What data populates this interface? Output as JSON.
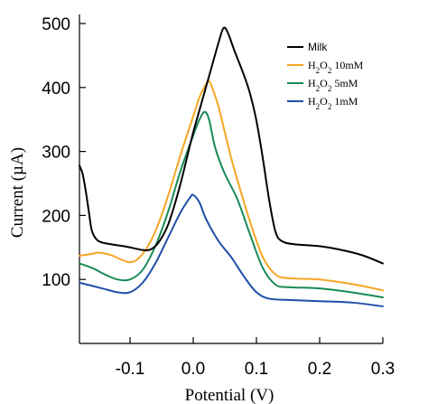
{
  "chart_data": {
    "type": "line",
    "xlabel": "Potential (V)",
    "ylabel": "Current (µA)",
    "xlim": [
      -0.18,
      0.3
    ],
    "ylim": [
      0,
      500
    ],
    "x_ticks": [
      -0.1,
      0.0,
      0.1,
      0.2,
      0.3
    ],
    "x_tick_labels": [
      "-0.1",
      "0.0",
      "0.1",
      "0.2",
      "0.3"
    ],
    "y_ticks": [
      100,
      200,
      300,
      400,
      500
    ],
    "y_tick_labels": [
      "100",
      "200",
      "300",
      "400",
      "500"
    ],
    "grid": false,
    "legend_position": "top-right",
    "series": [
      {
        "name": "Milk",
        "legend_main": "Milk",
        "legend_suffix": "",
        "color": "#000000",
        "points": [
          [
            -0.18,
            278
          ],
          [
            -0.175,
            265
          ],
          [
            -0.17,
            238
          ],
          [
            -0.165,
            205
          ],
          [
            -0.16,
            175
          ],
          [
            -0.15,
            160
          ],
          [
            -0.13,
            155
          ],
          [
            -0.11,
            152
          ],
          [
            -0.09,
            148
          ],
          [
            -0.08,
            146
          ],
          [
            -0.07,
            146
          ],
          [
            -0.06,
            152
          ],
          [
            -0.05,
            165
          ],
          [
            -0.04,
            185
          ],
          [
            -0.03,
            215
          ],
          [
            -0.02,
            250
          ],
          [
            -0.01,
            290
          ],
          [
            0.0,
            330
          ],
          [
            0.01,
            365
          ],
          [
            0.02,
            400
          ],
          [
            0.03,
            435
          ],
          [
            0.04,
            470
          ],
          [
            0.048,
            493
          ],
          [
            0.055,
            485
          ],
          [
            0.065,
            458
          ],
          [
            0.08,
            420
          ],
          [
            0.09,
            390
          ],
          [
            0.1,
            348
          ],
          [
            0.11,
            290
          ],
          [
            0.12,
            225
          ],
          [
            0.13,
            175
          ],
          [
            0.14,
            160
          ],
          [
            0.16,
            155
          ],
          [
            0.2,
            152
          ],
          [
            0.24,
            145
          ],
          [
            0.27,
            137
          ],
          [
            0.3,
            125
          ]
        ]
      },
      {
        "name": "H2O2 10mM",
        "legend_main": "H",
        "legend_suffix": "10mM",
        "color": "#f5a623",
        "points": [
          [
            -0.18,
            137
          ],
          [
            -0.16,
            140
          ],
          [
            -0.15,
            142
          ],
          [
            -0.13,
            138
          ],
          [
            -0.1,
            127
          ],
          [
            -0.08,
            140
          ],
          [
            -0.06,
            175
          ],
          [
            -0.04,
            230
          ],
          [
            -0.02,
            295
          ],
          [
            0.0,
            355
          ],
          [
            0.01,
            385
          ],
          [
            0.02,
            405
          ],
          [
            0.025,
            410
          ],
          [
            0.03,
            400
          ],
          [
            0.04,
            370
          ],
          [
            0.05,
            330
          ],
          [
            0.06,
            290
          ],
          [
            0.07,
            255
          ],
          [
            0.09,
            190
          ],
          [
            0.11,
            135
          ],
          [
            0.13,
            108
          ],
          [
            0.15,
            102
          ],
          [
            0.2,
            100
          ],
          [
            0.25,
            93
          ],
          [
            0.3,
            83
          ]
        ]
      },
      {
        "name": "H2O2 5mM",
        "legend_main": "H",
        "legend_suffix": "5mM",
        "color": "#1a8a57",
        "points": [
          [
            -0.18,
            125
          ],
          [
            -0.16,
            118
          ],
          [
            -0.14,
            108
          ],
          [
            -0.12,
            100
          ],
          [
            -0.1,
            100
          ],
          [
            -0.08,
            115
          ],
          [
            -0.06,
            152
          ],
          [
            -0.04,
            205
          ],
          [
            -0.02,
            270
          ],
          [
            0.0,
            325
          ],
          [
            0.01,
            350
          ],
          [
            0.018,
            362
          ],
          [
            0.025,
            350
          ],
          [
            0.035,
            305
          ],
          [
            0.05,
            265
          ],
          [
            0.07,
            225
          ],
          [
            0.09,
            170
          ],
          [
            0.11,
            118
          ],
          [
            0.13,
            92
          ],
          [
            0.15,
            88
          ],
          [
            0.2,
            86
          ],
          [
            0.25,
            80
          ],
          [
            0.3,
            72
          ]
        ]
      },
      {
        "name": "H2O2 1mM",
        "legend_main": "H",
        "legend_suffix": "1mM",
        "color": "#1f4fa8",
        "points": [
          [
            -0.18,
            95
          ],
          [
            -0.16,
            90
          ],
          [
            -0.14,
            85
          ],
          [
            -0.12,
            80
          ],
          [
            -0.1,
            80
          ],
          [
            -0.08,
            95
          ],
          [
            -0.06,
            125
          ],
          [
            -0.04,
            165
          ],
          [
            -0.02,
            205
          ],
          [
            -0.005,
            228
          ],
          [
            0.0,
            232
          ],
          [
            0.01,
            220
          ],
          [
            0.02,
            195
          ],
          [
            0.04,
            160
          ],
          [
            0.06,
            135
          ],
          [
            0.08,
            105
          ],
          [
            0.1,
            80
          ],
          [
            0.12,
            70
          ],
          [
            0.15,
            68
          ],
          [
            0.2,
            66
          ],
          [
            0.25,
            64
          ],
          [
            0.3,
            58
          ]
        ]
      }
    ]
  }
}
